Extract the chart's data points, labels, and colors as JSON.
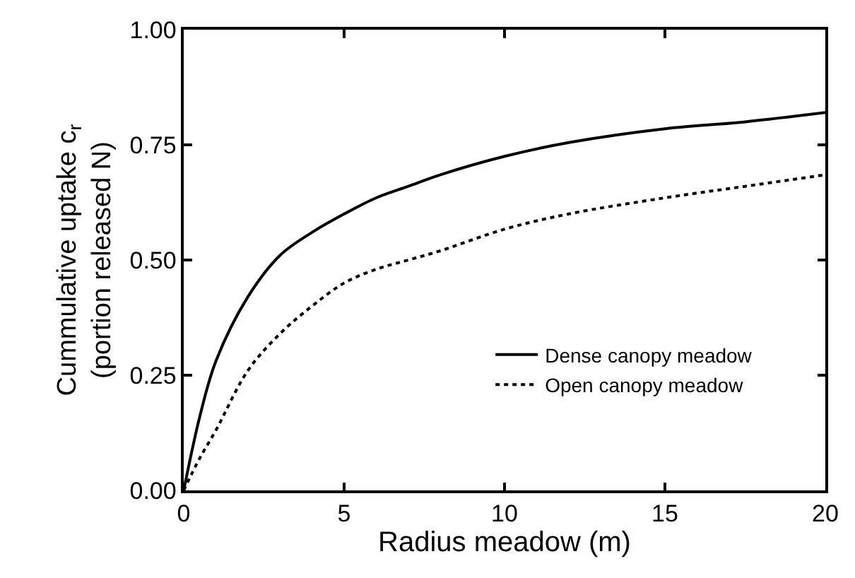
{
  "chart_data": {
    "type": "line",
    "xlabel": "Radius meadow (m)",
    "ylabel": "Cummulative uptake c$_{r}$\n(portion released N)",
    "x": [
      0,
      0.5,
      1,
      2,
      3,
      4,
      5,
      6,
      7,
      8,
      10,
      12,
      15,
      17.5,
      20
    ],
    "series": [
      {
        "name": "Dense canopy meadow",
        "color": "#000000",
        "line_style": "solid",
        "values": [
          0,
          0.16,
          0.28,
          0.42,
          0.51,
          0.56,
          0.6,
          0.635,
          0.66,
          0.685,
          0.725,
          0.755,
          0.785,
          0.8,
          0.82
        ]
      },
      {
        "name": "Open canopy meadow",
        "color": "#000000",
        "line_style": "dotted",
        "values": [
          0,
          0.07,
          0.13,
          0.26,
          0.34,
          0.4,
          0.45,
          0.48,
          0.5,
          0.52,
          0.567,
          0.6,
          0.635,
          0.66,
          0.685
        ]
      }
    ],
    "xlim": [
      0,
      20
    ],
    "xticks": [
      0,
      5,
      10,
      15,
      20
    ],
    "ylim": [
      0,
      1
    ],
    "yticks": [
      {
        "value": 0,
        "label": "0.00"
      },
      {
        "value": 0.25,
        "label": "0.25"
      },
      {
        "value": 0.5,
        "label": "0.50"
      },
      {
        "value": 0.75,
        "label": "0.75"
      },
      {
        "value": 1,
        "label": "1.00"
      }
    ],
    "legend": "bottom right",
    "marker": "none"
  }
}
